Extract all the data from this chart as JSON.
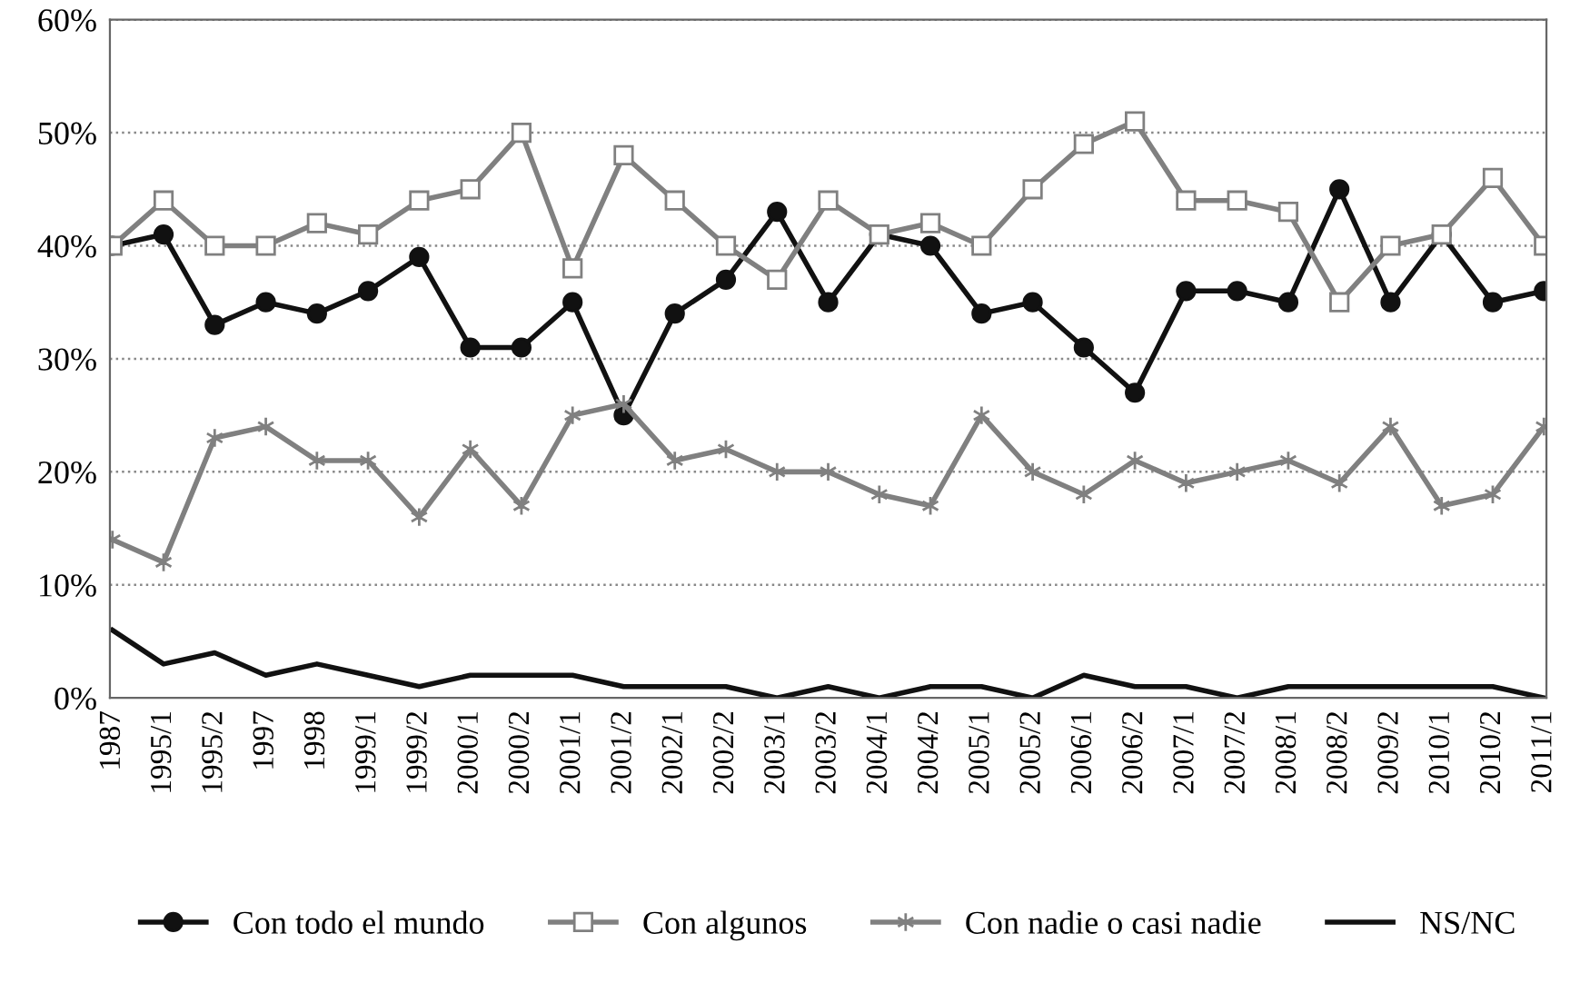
{
  "chart_data": {
    "type": "line",
    "categories": [
      "1987",
      "1995/1",
      "1995/2",
      "1997",
      "1998",
      "1999/1",
      "1999/2",
      "2000/1",
      "2000/2",
      "2001/1",
      "2001/2",
      "2002/1",
      "2002/2",
      "2003/1",
      "2003/2",
      "2004/1",
      "2004/2",
      "2005/1",
      "2005/2",
      "2006/1",
      "2006/2",
      "2007/1",
      "2007/2",
      "2008/1",
      "2008/2",
      "2009/2",
      "2010/1",
      "2010/2",
      "2011/1"
    ],
    "series": [
      {
        "name": "Con todo el mundo",
        "color": "#111111",
        "marker": "circle",
        "values": [
          40,
          41,
          33,
          35,
          34,
          36,
          39,
          31,
          31,
          35,
          25,
          34,
          37,
          43,
          35,
          41,
          40,
          34,
          35,
          31,
          27,
          36,
          36,
          35,
          45,
          35,
          41,
          35,
          36
        ]
      },
      {
        "name": "Con algunos",
        "color": "#808080",
        "marker": "square",
        "values": [
          40,
          44,
          40,
          40,
          42,
          41,
          44,
          45,
          50,
          38,
          48,
          44,
          40,
          37,
          44,
          41,
          42,
          40,
          45,
          49,
          51,
          44,
          44,
          43,
          35,
          40,
          41,
          46,
          40
        ]
      },
      {
        "name": "Con nadie o casi nadie",
        "color": "#808080",
        "marker": "cross",
        "values": [
          14,
          12,
          23,
          24,
          21,
          21,
          16,
          22,
          17,
          25,
          26,
          21,
          22,
          20,
          20,
          18,
          17,
          25,
          20,
          18,
          21,
          19,
          20,
          21,
          19,
          24,
          17,
          18,
          24
        ]
      },
      {
        "name": "NS/NC",
        "color": "#111111",
        "marker": "none",
        "values": [
          6,
          3,
          4,
          2,
          3,
          2,
          1,
          2,
          2,
          2,
          1,
          1,
          1,
          0,
          1,
          0,
          1,
          1,
          0,
          2,
          1,
          1,
          0,
          1,
          1,
          1,
          1,
          1,
          0
        ]
      }
    ],
    "ylim": [
      0,
      60
    ],
    "yticks": [
      {
        "value": 0,
        "label": "0%"
      },
      {
        "value": 10,
        "label": "10%"
      },
      {
        "value": 20,
        "label": "20%"
      },
      {
        "value": 30,
        "label": "30%"
      },
      {
        "value": 40,
        "label": "40%"
      },
      {
        "value": 50,
        "label": "50%"
      },
      {
        "value": 60,
        "label": "60%"
      }
    ],
    "grid": "y",
    "legend": "bottom",
    "line_style": "solid"
  }
}
